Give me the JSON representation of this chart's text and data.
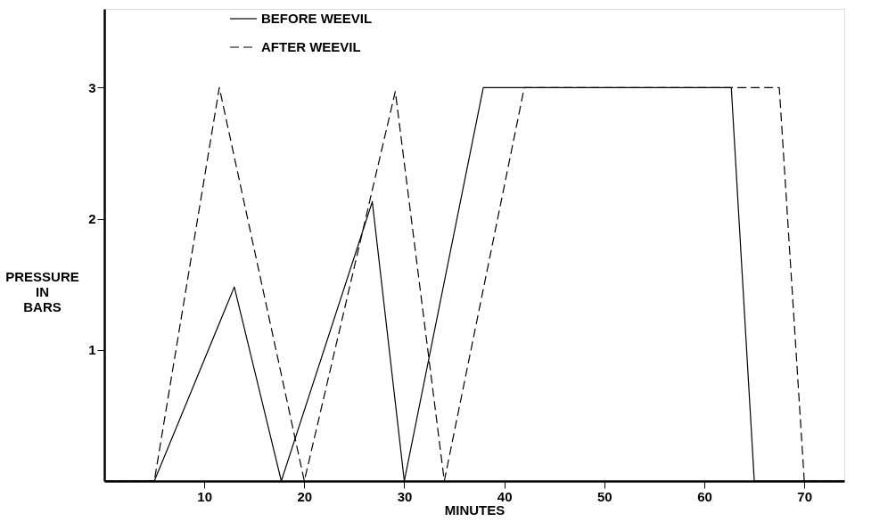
{
  "chart_data": {
    "type": "line",
    "xlabel": "MINUTES",
    "ylabel": "PRESSURE IN BARS",
    "xlim": [
      0,
      74
    ],
    "ylim": [
      0,
      3.6
    ],
    "xticks": [
      10,
      20,
      30,
      40,
      50,
      60,
      70
    ],
    "yticks": [
      1,
      2,
      3
    ],
    "grid": false,
    "legend": "top left",
    "marker": "none",
    "series": [
      {
        "name": "BEFORE WEEVIL",
        "color": "#000000",
        "line_style": "solid",
        "x": [
          0,
          5,
          13,
          17.7,
          26.8,
          30,
          37.9,
          62.7,
          65,
          74
        ],
        "values": [
          0,
          0,
          1.48,
          0,
          2.13,
          0,
          3,
          3,
          0,
          0
        ]
      },
      {
        "name": "AFTER WEEVIL",
        "color": "#000000",
        "line_style": "dashed",
        "x": [
          0,
          5,
          11.5,
          20,
          29.1,
          34,
          42,
          67.5,
          70,
          74
        ],
        "values": [
          0,
          0,
          3,
          0,
          2.97,
          0,
          3,
          3,
          0,
          0
        ]
      }
    ]
  }
}
